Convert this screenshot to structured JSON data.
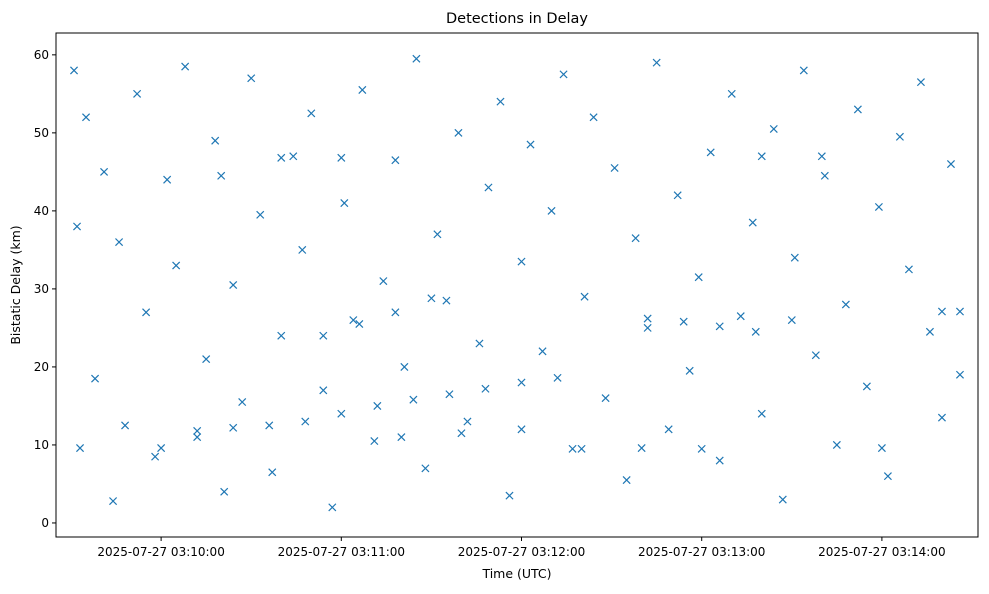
{
  "chart_data": {
    "type": "scatter",
    "title": "Detections in Delay",
    "xlabel": "Time (UTC)",
    "ylabel": "Bistatic Delay (km)",
    "x_ticks": [
      "2025-07-27 03:10:00",
      "2025-07-27 03:11:00",
      "2025-07-27 03:12:00",
      "2025-07-27 03:13:00",
      "2025-07-27 03:14:00"
    ],
    "y_ticks": [
      0,
      10,
      20,
      30,
      40,
      50,
      60
    ],
    "xlim": [
      "2025-07-27 03:09:25",
      "2025-07-27 03:14:32"
    ],
    "ylim": [
      -1.8,
      62.8
    ],
    "marker": "x",
    "color": "#1f77b4",
    "grid": false,
    "series": [
      {
        "x": [
          "03:09:31",
          "03:09:32",
          "03:09:33",
          "03:09:35",
          "03:09:38",
          "03:09:41",
          "03:09:44",
          "03:09:46",
          "03:09:48",
          "03:09:52",
          "03:09:55",
          "03:09:58",
          "03:10:02",
          "03:10:05",
          "03:10:08",
          "03:10:12",
          "03:10:15",
          "03:10:18",
          "03:10:21",
          "03:10:24",
          "03:10:27",
          "03:10:30",
          "03:10:33",
          "03:10:37",
          "03:10:40",
          "03:10:44",
          "03:10:47",
          "03:10:50",
          "03:10:54",
          "03:10:57",
          "03:11:01",
          "03:11:04",
          "03:11:07",
          "03:11:11",
          "03:11:14",
          "03:11:18",
          "03:11:21",
          "03:11:25",
          "03:11:28",
          "03:11:32",
          "03:11:35",
          "03:11:39",
          "03:11:42",
          "03:11:46",
          "03:11:49",
          "03:11:53",
          "03:11:56",
          "03:12:00",
          "03:12:03",
          "03:12:07",
          "03:12:10",
          "03:12:14",
          "03:12:17",
          "03:12:21",
          "03:12:24",
          "03:12:28",
          "03:12:31",
          "03:12:35",
          "03:12:38",
          "03:12:42",
          "03:12:45",
          "03:12:49",
          "03:12:52",
          "03:12:56",
          "03:12:59",
          "03:13:03",
          "03:13:06",
          "03:13:10",
          "03:13:13",
          "03:13:17",
          "03:13:20",
          "03:13:24",
          "03:13:27",
          "03:13:31",
          "03:13:34",
          "03:13:38",
          "03:13:41",
          "03:13:45",
          "03:13:48",
          "03:13:52",
          "03:13:55",
          "03:13:59",
          "03:14:02",
          "03:14:06",
          "03:14:09",
          "03:14:13",
          "03:14:16",
          "03:14:20",
          "03:14:23",
          "03:14:26"
        ],
        "y": [
          58.0,
          38.0,
          9.6,
          52.0,
          18.5,
          45.0,
          2.8,
          36.0,
          12.5,
          55.0,
          27.0,
          8.5,
          44.0,
          33.0,
          58.5,
          11.0,
          21.0,
          49.0,
          4.0,
          30.5,
          15.5,
          57.0,
          39.5,
          6.5,
          24.0,
          47.0,
          35.0,
          52.5,
          17.0,
          2.0,
          41.0,
          26.0,
          55.5,
          10.5,
          31.0,
          46.5,
          20.0,
          59.5,
          7.0,
          37.0,
          28.5,
          50.0,
          13.0,
          23.0,
          43.0,
          54.0,
          3.5,
          33.5,
          48.5,
          22.0,
          40.0,
          57.5,
          9.5,
          29.0,
          52.0,
          16.0,
          45.5,
          5.5,
          36.5,
          25.0,
          59.0,
          12.0,
          42.0,
          19.5,
          31.5,
          47.5,
          8.0,
          55.0,
          26.5,
          38.5,
          14.0,
          50.5,
          3.0,
          34.0,
          58.0,
          21.5,
          44.5,
          10.0,
          28.0,
          53.0,
          17.5,
          40.5,
          6.0,
          49.5,
          32.5,
          56.5,
          24.5,
          13.5,
          46.0,
          19.0
        ]
      },
      {
        "x": [
          "03:10:00",
          "03:10:12",
          "03:10:24",
          "03:10:36",
          "03:10:48",
          "03:11:00",
          "03:11:12",
          "03:11:24",
          "03:11:36",
          "03:11:48",
          "03:12:00",
          "03:12:12"
        ],
        "y": [
          9.6,
          11.8,
          12.2,
          12.5,
          13.0,
          14.0,
          15.0,
          15.8,
          16.5,
          17.2,
          18.0,
          18.6
        ]
      },
      {
        "x": [
          "03:10:54",
          "03:11:06",
          "03:11:18",
          "03:11:30",
          "03:12:42",
          "03:12:54",
          "03:13:06",
          "03:13:18",
          "03:13:30",
          "03:14:20",
          "03:14:26"
        ],
        "y": [
          24.0,
          25.5,
          27.0,
          28.8,
          26.2,
          25.8,
          25.2,
          24.5,
          26.0,
          27.1,
          27.1
        ]
      },
      {
        "x": [
          "03:10:20",
          "03:10:40",
          "03:11:00",
          "03:11:20",
          "03:11:40",
          "03:12:00",
          "03:12:20",
          "03:12:40",
          "03:13:00",
          "03:13:20",
          "03:13:40",
          "03:14:00"
        ],
        "y": [
          44.5,
          46.8,
          46.8,
          11.0,
          11.5,
          12.0,
          9.5,
          9.6,
          9.5,
          47.0,
          47.0,
          9.6
        ]
      }
    ]
  }
}
